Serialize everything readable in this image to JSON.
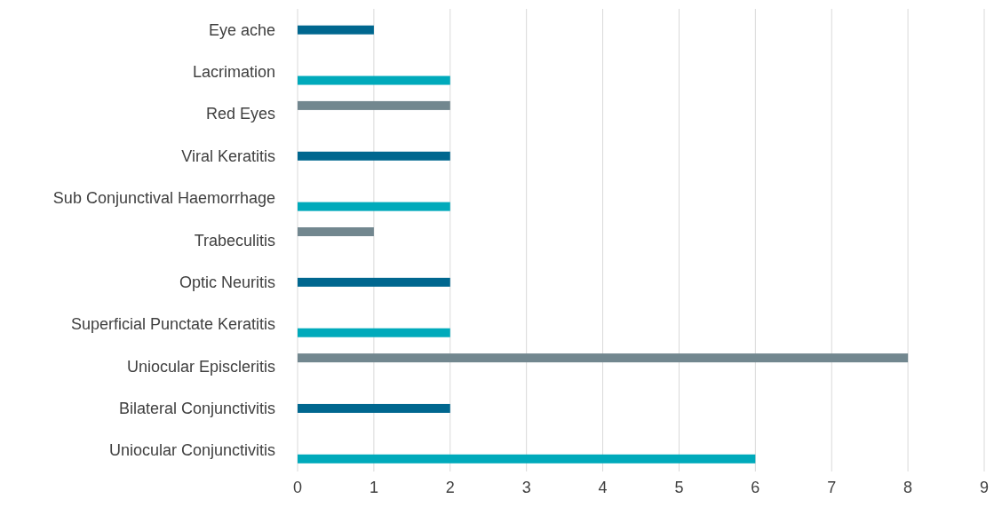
{
  "chart_data": {
    "type": "bar",
    "orientation": "horizontal",
    "categories": [
      "Eye ache",
      "Lacrimation",
      "Red Eyes",
      "Viral Keratitis",
      "Sub Conjunctival Haemorrhage",
      "Trabeculitis",
      "Optic Neuritis",
      "Superficial Punctate Keratitis",
      "Uniocular Episcleritis",
      "Bilateral Conjunctivitis",
      "Uniocular Conjunctivitis"
    ],
    "series": [
      {
        "color": "#00aabb",
        "values": [
          null,
          2,
          null,
          null,
          2,
          null,
          null,
          2,
          null,
          null,
          6
        ]
      },
      {
        "color": "#00678f",
        "values": [
          1,
          null,
          null,
          2,
          null,
          null,
          2,
          null,
          null,
          2,
          null
        ]
      },
      {
        "color": "#72878f",
        "values": [
          null,
          null,
          2,
          null,
          null,
          1,
          null,
          null,
          8,
          null,
          null
        ]
      }
    ],
    "xlim": [
      0,
      9
    ],
    "xticks": [
      0,
      1,
      2,
      3,
      4,
      5,
      6,
      7,
      8,
      9
    ],
    "grid": "x"
  }
}
